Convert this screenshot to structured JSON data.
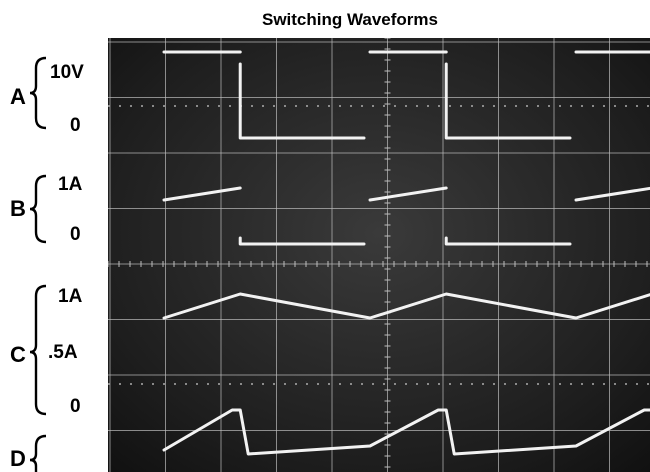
{
  "chart_data": {
    "type": "line",
    "title": "Switching Waveforms",
    "channels": [
      {
        "name": "A",
        "labels": [
          "10V",
          "0"
        ],
        "waveform": "square",
        "high": 10,
        "low": 0,
        "unit": "V"
      },
      {
        "name": "B",
        "labels": [
          "1A",
          "0"
        ],
        "waveform": "pulsed ramp",
        "ramp_start": 0.65,
        "ramp_end": 0.85,
        "low": 0,
        "unit": "A"
      },
      {
        "name": "C",
        "labels": [
          "1A",
          ".5A",
          "0"
        ],
        "waveform": "triangle",
        "peak": 0.85,
        "valley": 0.65,
        "unit": "A"
      },
      {
        "name": "D",
        "labels": [],
        "waveform": "sawtooth ramp",
        "unit": ""
      }
    ],
    "grid": true,
    "graticule_divisions": {
      "x": 10,
      "y": 8
    }
  },
  "colors": {
    "screen": "#1c1c1c",
    "trace": "#f2f2f2",
    "grid": "#bdbdbd"
  }
}
